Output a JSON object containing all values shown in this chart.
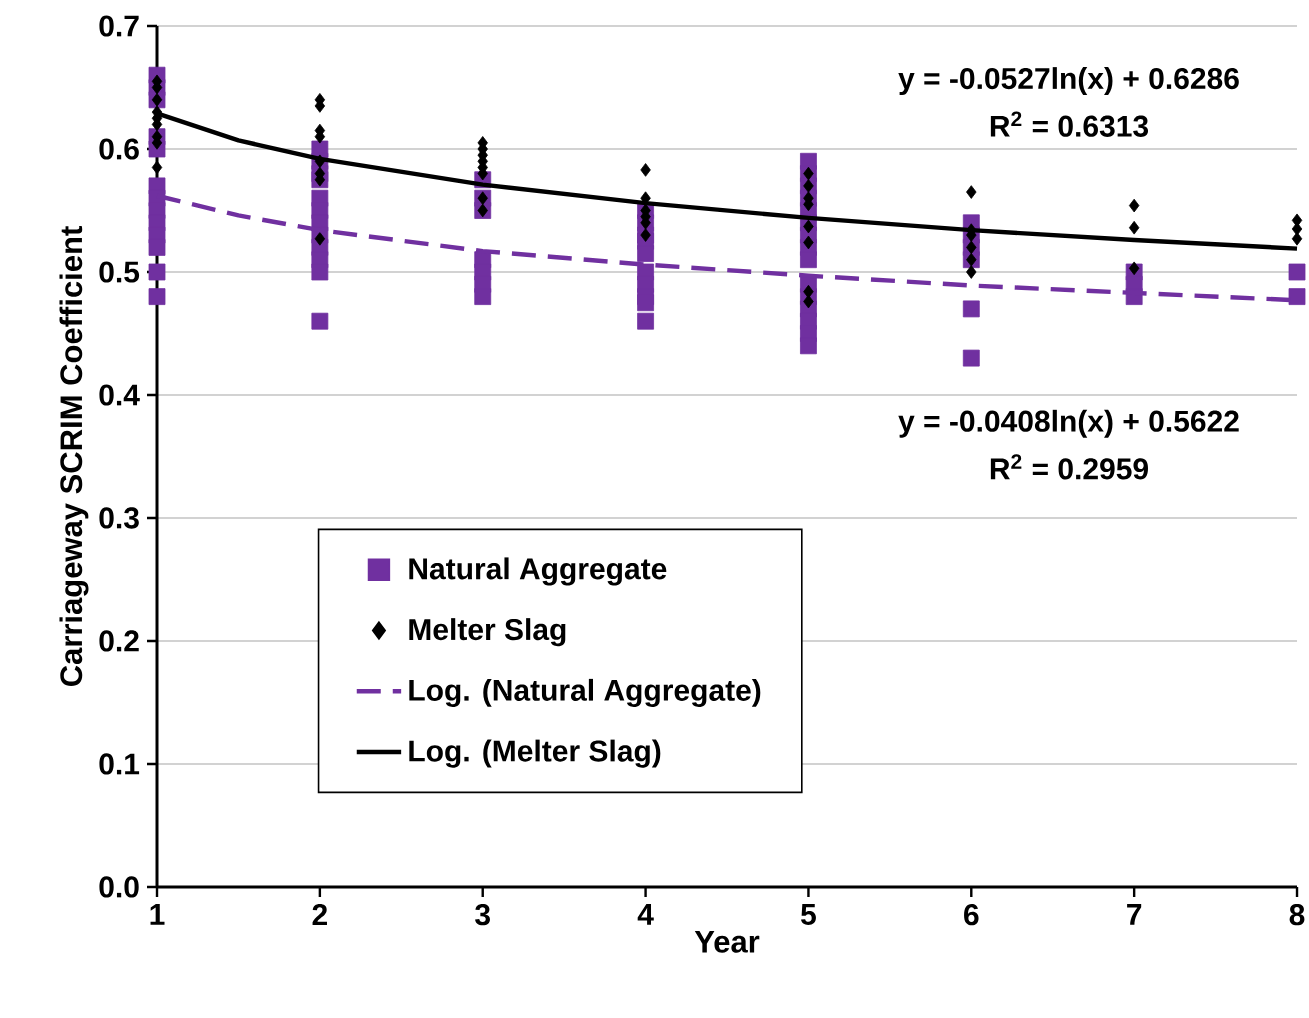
{
  "chart_data": {
    "type": "scatter",
    "xlabel": "Year",
    "ylabel": "Carriageway SCRIM Coefficient",
    "xlim": [
      1,
      8
    ],
    "ylim": [
      0,
      0.7
    ],
    "xticks": [
      1,
      2,
      3,
      4,
      5,
      6,
      7,
      8
    ],
    "yticks": [
      {
        "value": 0,
        "label": "0.0"
      },
      0.1,
      0.2,
      0.3,
      0.4,
      0.5,
      0.6,
      0.7
    ],
    "grid": "y",
    "legend": "bottom left",
    "series": [
      {
        "name": "Natural Aggregate",
        "color": "#7030a0",
        "marker": "square",
        "x": [
          1,
          1,
          1,
          1,
          1,
          1,
          1,
          1,
          1,
          1,
          1,
          1,
          1,
          2,
          2,
          2,
          2,
          2,
          2,
          2,
          2,
          2,
          2,
          2,
          2,
          3,
          3,
          3,
          3,
          3,
          3,
          3,
          4,
          4,
          4,
          4,
          4,
          4,
          4,
          4,
          4,
          4,
          5,
          5,
          5,
          5,
          5,
          5,
          5,
          5,
          5,
          5,
          5,
          5,
          5,
          5,
          5,
          6,
          6,
          6,
          6,
          6,
          6,
          7,
          7,
          7,
          8,
          8
        ],
        "values": [
          0.66,
          0.65,
          0.64,
          0.61,
          0.6,
          0.57,
          0.56,
          0.55,
          0.54,
          0.53,
          0.52,
          0.5,
          0.48,
          0.6,
          0.59,
          0.58,
          0.575,
          0.56,
          0.55,
          0.54,
          0.53,
          0.52,
          0.51,
          0.5,
          0.46,
          0.575,
          0.56,
          0.55,
          0.51,
          0.5,
          0.49,
          0.48,
          0.55,
          0.54,
          0.53,
          0.525,
          0.515,
          0.5,
          0.49,
          0.48,
          0.475,
          0.46,
          0.59,
          0.58,
          0.57,
          0.56,
          0.55,
          0.54,
          0.53,
          0.52,
          0.51,
          0.49,
          0.48,
          0.47,
          0.46,
          0.45,
          0.44,
          0.54,
          0.53,
          0.52,
          0.51,
          0.47,
          0.43,
          0.5,
          0.49,
          0.48,
          0.5,
          0.48
        ]
      },
      {
        "name": "Melter Slag",
        "color": "#000000",
        "marker": "diamond",
        "x": [
          1,
          1,
          1,
          1,
          1,
          1,
          1,
          1,
          1,
          2,
          2,
          2,
          2,
          2,
          2,
          2,
          2,
          3,
          3,
          3,
          3,
          3,
          3,
          3,
          3,
          4,
          4,
          4,
          4,
          4,
          4,
          5,
          5,
          5,
          5,
          5,
          5,
          5,
          5,
          6,
          6,
          6,
          6,
          6,
          6,
          7,
          7,
          7,
          8,
          8,
          8
        ],
        "values": [
          0.655,
          0.65,
          0.64,
          0.63,
          0.625,
          0.62,
          0.61,
          0.605,
          0.585,
          0.64,
          0.635,
          0.615,
          0.61,
          0.59,
          0.58,
          0.575,
          0.527,
          0.605,
          0.6,
          0.595,
          0.59,
          0.585,
          0.58,
          0.56,
          0.55,
          0.583,
          0.56,
          0.55,
          0.545,
          0.54,
          0.53,
          0.58,
          0.57,
          0.56,
          0.555,
          0.537,
          0.524,
          0.484,
          0.476,
          0.565,
          0.534,
          0.53,
          0.52,
          0.51,
          0.5,
          0.554,
          0.536,
          0.503,
          0.542,
          0.535,
          0.527
        ]
      },
      {
        "name": "Log. (Natural Aggregate)",
        "type": "line",
        "color": "#7030a0",
        "marker": "none",
        "line_style": "dashed",
        "x": [
          1,
          1.5,
          2,
          3,
          4,
          5,
          6,
          7,
          8
        ],
        "values": [
          0.562,
          0.546,
          0.534,
          0.517,
          0.506,
          0.497,
          0.489,
          0.483,
          0.477
        ]
      },
      {
        "name": "Log. (Melter Slag)",
        "type": "line",
        "color": "#000000",
        "marker": "none",
        "line_style": "solid",
        "x": [
          1,
          1.5,
          2,
          3,
          4,
          5,
          6,
          7,
          8
        ],
        "values": [
          0.629,
          0.607,
          0.592,
          0.571,
          0.556,
          0.544,
          0.534,
          0.526,
          0.519
        ]
      }
    ],
    "annotations": [
      "y = -0.0527ln(x) + 0.6286",
      "R$^{2}$ = 0.6313",
      "y = -0.0408ln(x) + 0.5622",
      "R$^{2}$ = 0.2959"
    ]
  }
}
